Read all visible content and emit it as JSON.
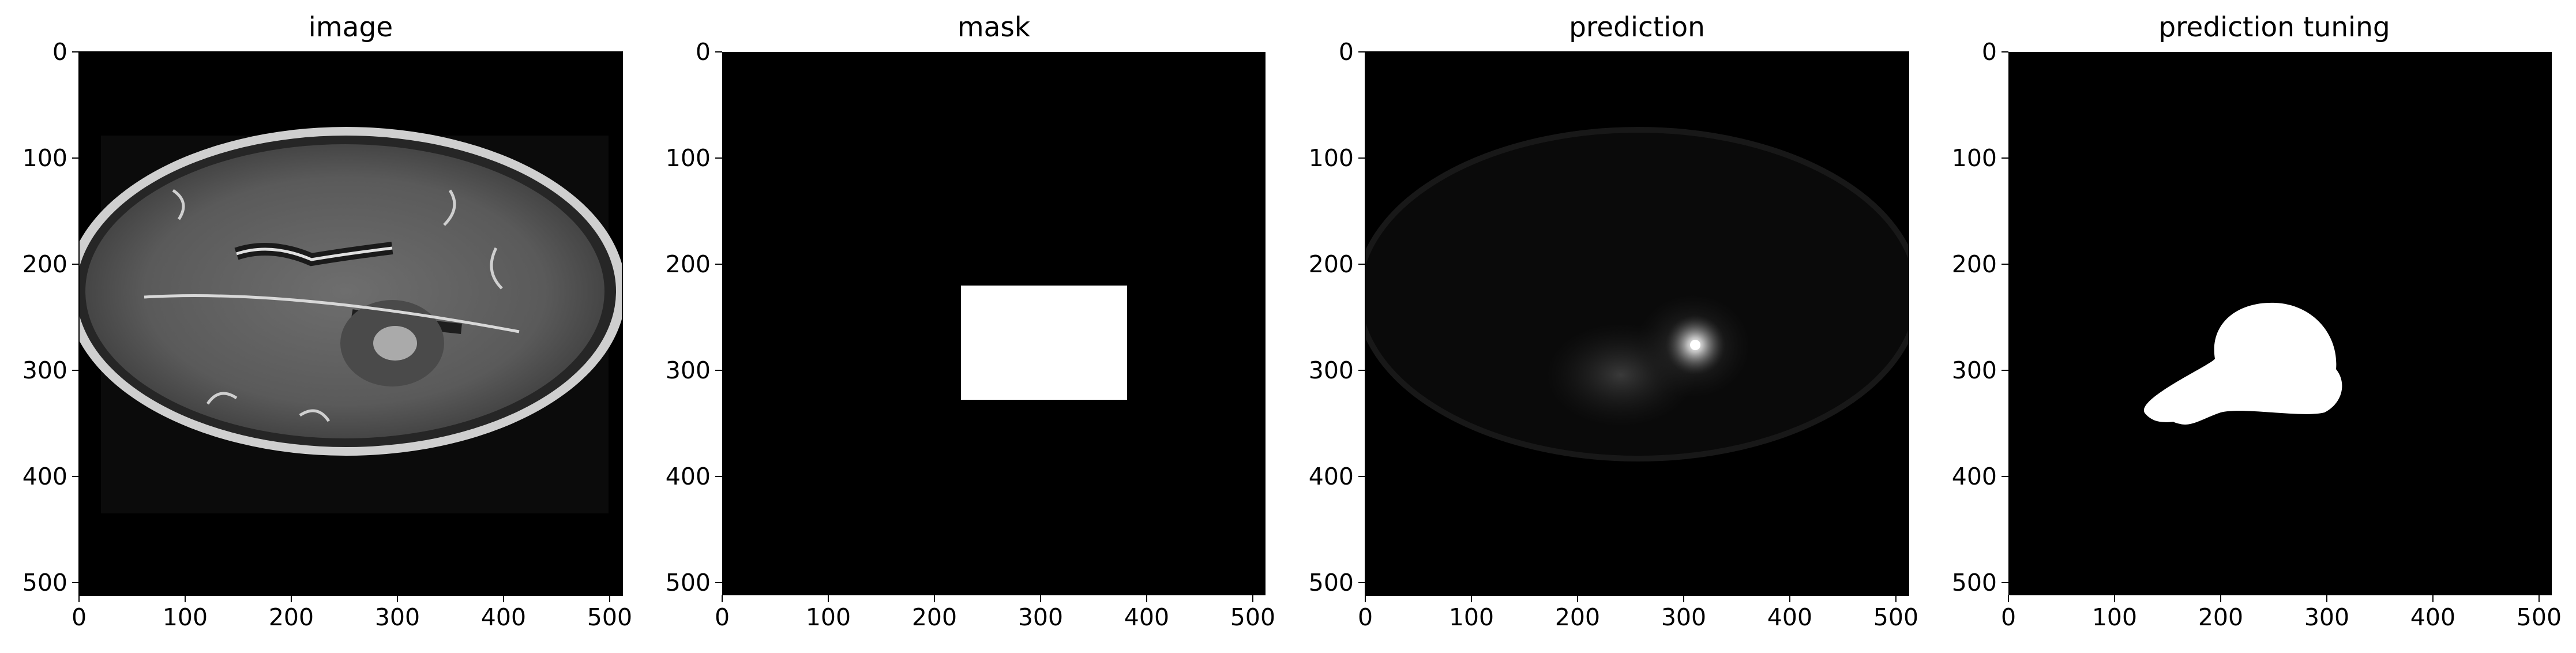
{
  "figure": {
    "panels": [
      {
        "id": "image",
        "title": "image"
      },
      {
        "id": "mask",
        "title": "mask"
      },
      {
        "id": "prediction",
        "title": "prediction"
      },
      {
        "id": "prediction-tuning",
        "title": "prediction tuning"
      }
    ],
    "axes": {
      "x_ticks": [
        0,
        100,
        200,
        300,
        400,
        500
      ],
      "y_ticks": [
        0,
        100,
        200,
        300,
        400,
        500
      ],
      "extent": [
        0,
        512
      ]
    },
    "colors": {
      "background": "#000000",
      "foreground": "#ffffff",
      "tissue": "#8c8c8c"
    }
  }
}
